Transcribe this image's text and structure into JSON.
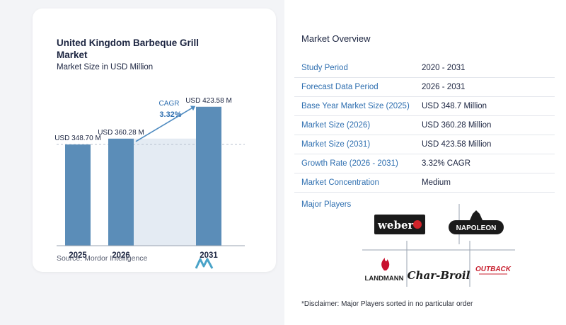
{
  "chart": {
    "title": "United Kingdom Barbeque Grill Market",
    "subtitle": "Market Size in USD Million",
    "source": "Source:  Mordor Intelligence",
    "cagr_label": "CAGR",
    "cagr_value": "3.32%",
    "bar_labels": [
      "USD 348.70 M",
      "USD 360.28 M",
      "USD 423.58 M"
    ]
  },
  "chart_data": {
    "type": "bar",
    "categories": [
      "2025",
      "2026",
      "2031"
    ],
    "values": [
      348.7,
      360.28,
      423.58
    ],
    "ylabel": "",
    "xlabel": "",
    "ylim": [
      0,
      450
    ],
    "colors": {
      "bar": "#5b8db8",
      "bar_dark": "#4a79a3",
      "shade": "#e4ebf3",
      "arrow": "#4f8bc0",
      "cagr": "#2f6fb0"
    }
  },
  "overview": {
    "title": "Market Overview",
    "rows": [
      {
        "label": "Study Period",
        "value": "2020 - 2031"
      },
      {
        "label": "Forecast Data Period",
        "value": "2026 - 2031"
      },
      {
        "label": "Base Year Market Size (2025)",
        "value": "USD 348.7 Million"
      },
      {
        "label": "Market Size (2026)",
        "value": "USD 360.28 Million"
      },
      {
        "label": "Market Size (2031)",
        "value": "USD 423.58 Million"
      },
      {
        "label": "Growth Rate (2026 - 2031)",
        "value": "3.32% CAGR"
      },
      {
        "label": "Market Concentration",
        "value": "Medium"
      }
    ]
  },
  "players": {
    "title": "Major Players",
    "logos": [
      "weber",
      "NAPOLEON",
      "LANDMANN",
      "Char-Broil",
      "OUTBACK"
    ],
    "disclaimer": "*Disclaimer: Major Players sorted in no particular order"
  }
}
